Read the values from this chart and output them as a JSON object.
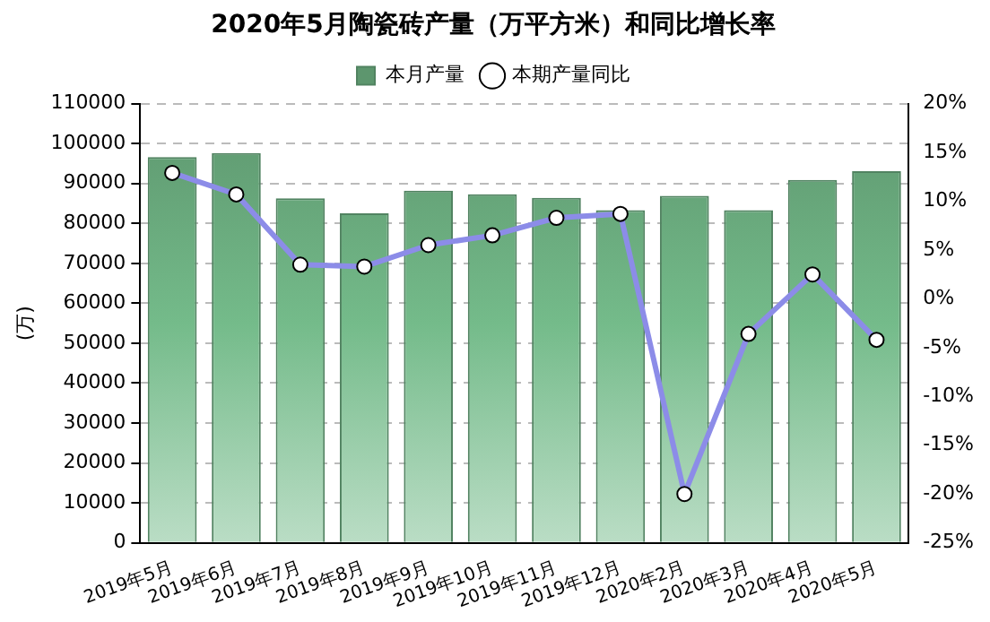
{
  "chart_data": {
    "type": "bar",
    "title": "2020年5月陶瓷砖产量（万平方米）和同比增长率",
    "ylabel": "(万)",
    "categories": [
      "2019年5月",
      "2019年6月",
      "2019年7月",
      "2019年8月",
      "2019年9月",
      "2019年10月",
      "2019年11月",
      "2019年12月",
      "2020年2月",
      "2020年3月",
      "2020年4月",
      "2020年5月"
    ],
    "series": [
      {
        "name": "本月产量",
        "color": "#74bb8a",
        "values": [
          96600,
          97600,
          86300,
          82500,
          88200,
          87300,
          86400,
          83300,
          86900,
          83300,
          90900,
          93100
        ]
      },
      {
        "name": "本期产量同比",
        "type": "line",
        "axis": "y2",
        "color": "#8c8ce8",
        "values": [
          12.9,
          10.7,
          3.5,
          3.3,
          5.5,
          6.5,
          8.3,
          8.7,
          -20.0,
          -3.6,
          2.5,
          -4.2
        ]
      }
    ],
    "ylim": [
      0,
      110000
    ],
    "yticks": [
      0,
      10000,
      20000,
      30000,
      40000,
      50000,
      60000,
      70000,
      80000,
      90000,
      100000,
      110000
    ],
    "y2lim": [
      -25,
      20
    ],
    "y2ticks": [
      {
        "value": -25,
        "label": "-25%"
      },
      {
        "value": -20,
        "label": "-20%"
      },
      {
        "value": -15,
        "label": "-15%"
      },
      {
        "value": -10,
        "label": "-10%"
      },
      {
        "value": -5,
        "label": "-5%"
      },
      {
        "value": 0,
        "label": "0%"
      },
      {
        "value": 5,
        "label": "5%"
      },
      {
        "value": 10,
        "label": "10%"
      },
      {
        "value": 15,
        "label": "15%"
      },
      {
        "value": 20,
        "label": "20%"
      }
    ],
    "grid": "y",
    "legend": "top",
    "marker": "circle",
    "line_style": "solid"
  }
}
